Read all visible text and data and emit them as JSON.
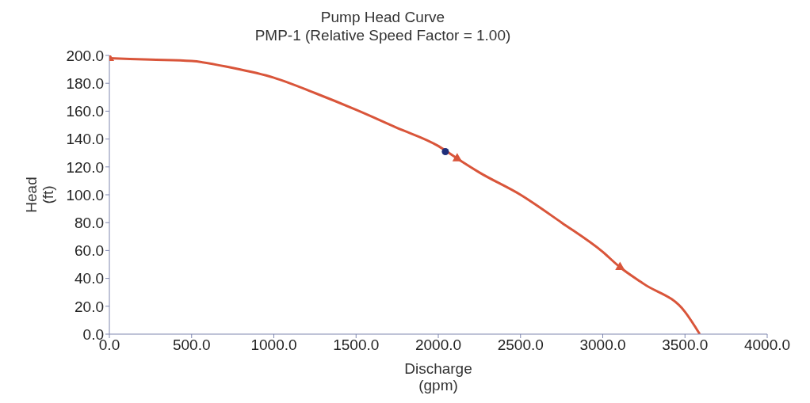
{
  "chart_data": {
    "type": "line",
    "title": "Pump Head Curve",
    "subtitle": "PMP-1 (Relative Speed Factor = 1.00)",
    "xlabel": "Discharge\n(gpm)",
    "ylabel": "Head\n(ft)",
    "series": [
      {
        "color": "#d9553a",
        "marker": "none",
        "line_style": "solid",
        "x": [
          0,
          250,
          500,
          750,
          1000,
          1250,
          1500,
          1750,
          2000,
          2115,
          2250,
          2500,
          2750,
          3000,
          3105,
          3250,
          3500,
          3590
        ],
        "values": [
          198,
          197,
          196,
          191,
          184,
          173,
          161,
          148,
          135,
          126,
          116,
          100,
          80,
          59,
          48,
          36,
          16,
          0
        ]
      },
      {
        "type": "scatter",
        "color": "#d9553a",
        "marker": "triangle",
        "x": [
          0,
          2115,
          3105
        ],
        "values": [
          198,
          126,
          48
        ]
      },
      {
        "type": "scatter",
        "color": "#1f2f7a",
        "marker": "circle",
        "x": [
          2043
        ],
        "values": [
          131
        ]
      }
    ],
    "xlim": [
      0,
      4000
    ],
    "xticks": [
      {
        "value": 0,
        "label": "0.0"
      },
      {
        "value": 500,
        "label": "500.0"
      },
      {
        "value": 1000,
        "label": "1000.0"
      },
      {
        "value": 1500,
        "label": "1500.0"
      },
      {
        "value": 2000,
        "label": "2000.0"
      },
      {
        "value": 2500,
        "label": "2500.0"
      },
      {
        "value": 3000,
        "label": "3000.0"
      },
      {
        "value": 3500,
        "label": "3500.0"
      },
      {
        "value": 4000,
        "label": "4000.0"
      }
    ],
    "ylim": [
      0,
      200
    ],
    "yticks": [
      {
        "value": 0,
        "label": "0.0"
      },
      {
        "value": 20,
        "label": "20.0"
      },
      {
        "value": 40,
        "label": "40.0"
      },
      {
        "value": 60,
        "label": "60.0"
      },
      {
        "value": 80,
        "label": "80.0"
      },
      {
        "value": 100,
        "label": "100.0"
      },
      {
        "value": 120,
        "label": "120.0"
      },
      {
        "value": 140,
        "label": "140.0"
      },
      {
        "value": 160,
        "label": "160.0"
      },
      {
        "value": 180,
        "label": "180.0"
      },
      {
        "value": 200,
        "label": "200.0"
      }
    ],
    "grid": false
  }
}
